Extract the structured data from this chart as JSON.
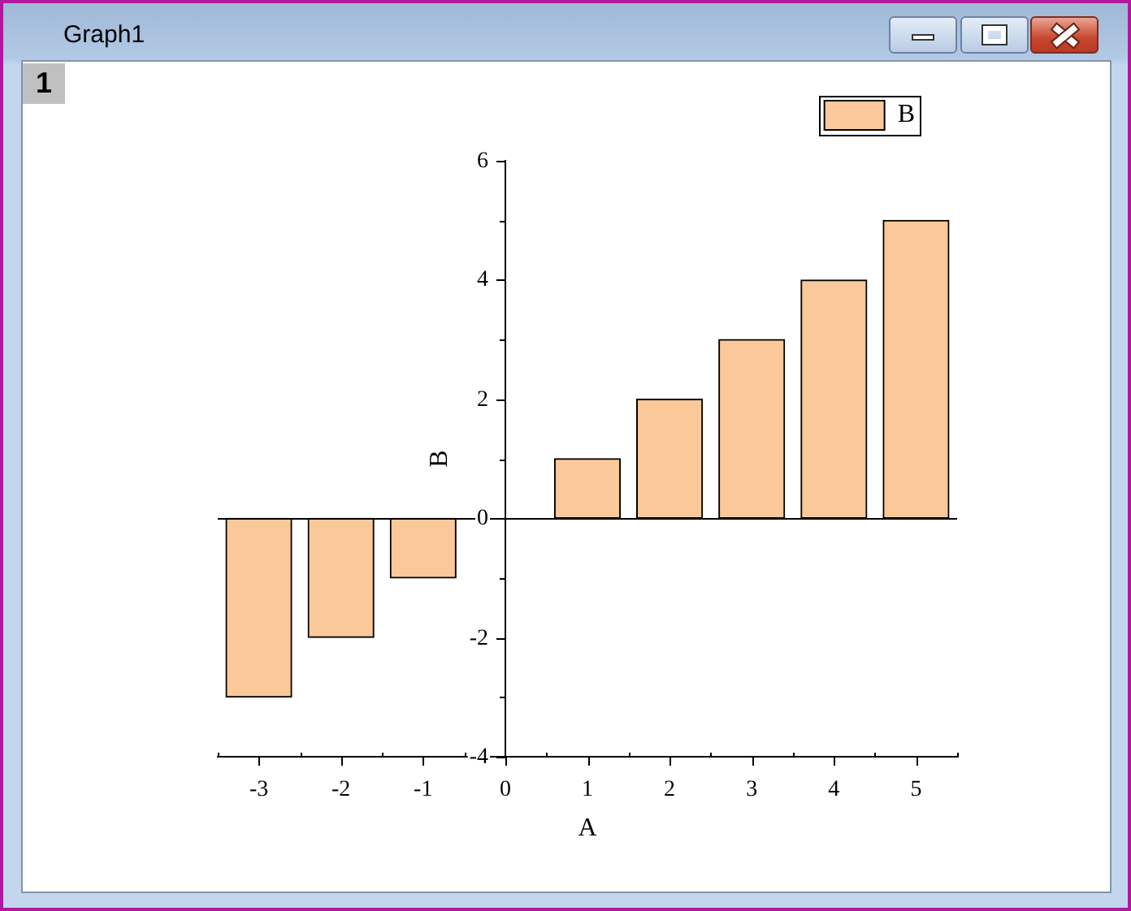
{
  "chart_data": {
    "type": "bar",
    "xlabel": "A",
    "ylabel": "B",
    "annotations": [
      "Graph1",
      "1"
    ],
    "x": [
      -3,
      -2,
      -1,
      1,
      2,
      3,
      4,
      5
    ],
    "series": [
      {
        "name": "B",
        "color": "#fbc999",
        "values": [
          -3,
          -2,
          -1,
          1,
          2,
          3,
          4,
          5
        ]
      }
    ],
    "xlim": [
      -3.5,
      5.5
    ],
    "xticks": [
      {
        "value": -3.5,
        "label": null
      },
      -3,
      {
        "value": -2.5,
        "label": null
      },
      -2,
      {
        "value": -1.5,
        "label": null
      },
      -1,
      {
        "value": -0.5,
        "label": null
      },
      0,
      {
        "value": 0.5,
        "label": null
      },
      1,
      {
        "value": 1.5,
        "label": null
      },
      2,
      {
        "value": 2.5,
        "label": null
      },
      3,
      {
        "value": 3.5,
        "label": null
      },
      4,
      {
        "value": 4.5,
        "label": null
      },
      5,
      {
        "value": 5.5,
        "label": null
      }
    ],
    "ylim": [
      -4,
      6
    ],
    "yticks": [
      -4,
      {
        "value": -3,
        "label": null
      },
      -2,
      {
        "value": -1,
        "label": null
      },
      0,
      {
        "value": 1,
        "label": null
      },
      2,
      {
        "value": 3,
        "label": null
      },
      4,
      {
        "value": 5,
        "label": null
      },
      6
    ],
    "ref_lines": [
      {
        "axis": "y",
        "value": 0,
        "color": "#000000"
      }
    ],
    "legend": "top right"
  }
}
